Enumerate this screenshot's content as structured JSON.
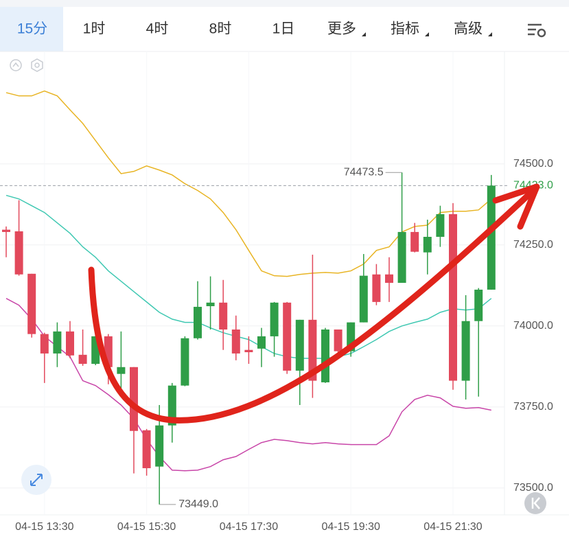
{
  "tabs": [
    "15分",
    "1时",
    "4时",
    "8时",
    "1日",
    "更多",
    "指标",
    "高级"
  ],
  "chart_data": {
    "type": "candlestick",
    "categories": [
      null,
      null,
      null,
      "04-15 13:30",
      null,
      null,
      null,
      null,
      null,
      null,
      null,
      "04-15 15:30",
      null,
      null,
      null,
      null,
      null,
      null,
      null,
      "04-15 17:30",
      null,
      null,
      null,
      null,
      null,
      null,
      null,
      "04-15 19:30",
      null,
      null,
      null,
      null,
      null,
      null,
      null,
      "04-15 21:30",
      null,
      null,
      null
    ],
    "open": [
      74297,
      74292,
      74161,
      73975,
      73915,
      73983,
      73911,
      73883,
      73968,
      73852,
      73873,
      73678,
      73566,
      73693,
      73816,
      73962,
      74061,
      74072,
      73989,
      73926,
      73930,
      73968,
      74072,
      73862,
      74019,
      73826,
      73989,
      73922,
      74011,
      74159,
      74159,
      74133,
      74290,
      74227,
      74275,
      74345,
      73831,
      74015,
      74112
    ],
    "high": [
      74307,
      74388,
      74161,
      73979,
      74011,
      74015,
      73989,
      73989,
      73975,
      73983,
      73873,
      73682,
      73756,
      73824,
      73968,
      74138,
      74153,
      74142,
      74032,
      73968,
      73994,
      74074,
      74074,
      74019,
      74220,
      73994,
      73989,
      74011,
      74222,
      74191,
      74212,
      74473.5,
      74318,
      74328,
      74371,
      74379,
      74095,
      74117,
      74466
    ],
    "low": [
      74212,
      74155,
      73964,
      73824,
      73873,
      73900,
      73877,
      73879,
      73820,
      73799,
      73545,
      73538,
      73449,
      73640,
      73814,
      73958,
      73989,
      73926,
      73894,
      73883,
      73873,
      73905,
      73852,
      73756,
      73778,
      73824,
      73905,
      73905,
      74011,
      74064,
      74074,
      74133,
      74227,
      74159,
      74244,
      73803,
      73773,
      73782,
      74112
    ],
    "close": [
      74290,
      74159,
      73975,
      73915,
      73983,
      73909,
      73883,
      73968,
      73873,
      73873,
      73676,
      73561,
      73693,
      73816,
      73962,
      74059,
      74072,
      73989,
      73915,
      73919,
      73968,
      74072,
      73862,
      74019,
      73831,
      73989,
      73922,
      74011,
      74155,
      74074,
      74133,
      74290,
      74229,
      74275,
      74345,
      73831,
      74015,
      74112,
      74433
    ],
    "up_color": "#2f9e48",
    "down_color": "#e2485b",
    "bands": [
      {
        "color": "#e8b423",
        "values": [
          74720,
          74710,
          74710,
          74725,
          74710,
          74667,
          74625,
          74572,
          74519,
          74470,
          74477,
          74494,
          74481,
          74466,
          74439,
          74418,
          74392,
          74350,
          74297,
          74233,
          74170,
          74155,
          74153,
          74159,
          74163,
          74165,
          74163,
          74170,
          74191,
          74233,
          74244,
          74290,
          74307,
          74311,
          74350,
          74354,
          74354,
          74358,
          74392
        ]
      },
      {
        "color": "#3fc8b2",
        "values": [
          74403,
          74392,
          74371,
          74350,
          74318,
          74286,
          74244,
          74212,
          74170,
          74138,
          74106,
          74074,
          74042,
          74021,
          74011,
          74011,
          73994,
          73979,
          73968,
          73958,
          73936,
          73915,
          73905,
          73900,
          73900,
          73900,
          73905,
          73915,
          73936,
          73958,
          73983,
          74000,
          74011,
          74021,
          74042,
          74053,
          74049,
          74053,
          74085
        ]
      },
      {
        "color": "#c845a8",
        "values": [
          74085,
          74064,
          74021,
          73968,
          73936,
          73905,
          73831,
          73816,
          73788,
          73756,
          73714,
          73650,
          73597,
          73555,
          73553,
          73555,
          73566,
          73587,
          73597,
          73619,
          73640,
          73650,
          73646,
          73640,
          73636,
          73640,
          73636,
          73634,
          73634,
          73634,
          73661,
          73735,
          73773,
          73786,
          73778,
          73752,
          73746,
          73748,
          73740
        ]
      }
    ],
    "ylim": [
      73417,
      74847
    ],
    "yticks": [
      {
        "value": 74500,
        "label": "74500.0"
      },
      {
        "value": 74250,
        "label": "74250.0"
      },
      {
        "value": 74000,
        "label": "74000.0"
      },
      {
        "value": 73750,
        "label": "73750.0"
      },
      {
        "value": 73500,
        "label": "73500.0"
      }
    ],
    "grid": true,
    "annotations": {
      "high": {
        "value": 74473.5,
        "label": "74473.5"
      },
      "low": {
        "value": 73449,
        "label": "73449.0"
      },
      "last": {
        "value": 74433,
        "label": "74433.0"
      }
    }
  }
}
